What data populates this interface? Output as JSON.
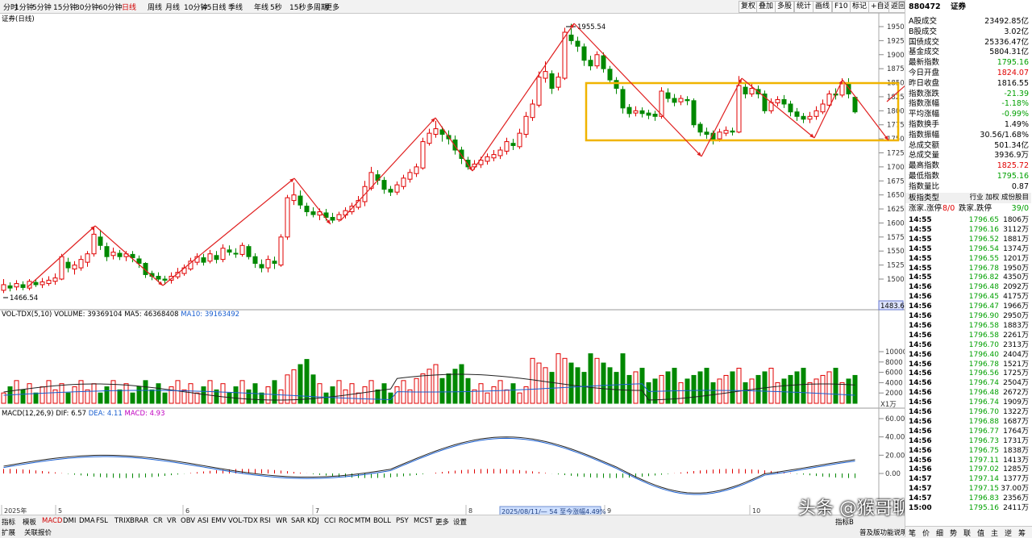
{
  "toolbar": {
    "periods": [
      "分时",
      "1分钟",
      "5分钟",
      "15分钟",
      "30分钟",
      "60分钟",
      "日线",
      "周线",
      "月线",
      "10分钟",
      "45日线",
      "季线",
      "年线",
      "5秒",
      "15秒",
      "多周期",
      "更多"
    ],
    "active_period": "日线",
    "right_buttons": [
      "复权",
      "叠加",
      "多股",
      "统计",
      "画线",
      "F10",
      "标记",
      "+自选",
      "返回"
    ]
  },
  "chart_title": "证券(日线)",
  "price_axis": [
    "1950",
    "1925",
    "1900",
    "1875",
    "1850",
    "1825",
    "1800",
    "1775",
    "1750",
    "1725",
    "1700",
    "1675",
    "1650",
    "1625",
    "1600",
    "1575",
    "1550",
    "1525",
    "1500"
  ],
  "price_high_label": "1955.54",
  "price_low_label": "1466.54",
  "price_current_tag": "1483.6",
  "volume_header": {
    "name": "VOL-TDX(5,10)",
    "volume": "VOLUME: 39369104",
    "ma5": "MA5: 46368408",
    "ma10": "MA10: 39163492"
  },
  "volume_axis": [
    "10000",
    "8000",
    "6000",
    "4000",
    "2000"
  ],
  "volume_unit": "X1万",
  "macd_header": {
    "name": "MACD(12,26,9)",
    "dif": "DIF: 6.57",
    "dea": "DEA: 4.11",
    "macd": "MACD: 4.93"
  },
  "macd_axis": [
    "60.00",
    "40.00",
    "20.00",
    "0.00"
  ],
  "month_labels": [
    "2025年",
    "5",
    "6",
    "7",
    "8",
    "9",
    "10"
  ],
  "range_note": "2025/08/11/— 54 至今涨幅4.49%",
  "bottom_tabs": [
    "指标",
    "模板",
    "MACD",
    "DMI",
    "DMA",
    "FSL",
    "TRIX",
    "BRAR",
    "CR",
    "VR",
    "OBV",
    "ASI",
    "EMV",
    "VOL-TDX",
    "RSI",
    "WR",
    "SAR",
    "KDJ",
    "CCI",
    "ROC",
    "MTM",
    "BOLL",
    "PSY",
    "MCST",
    "更多",
    "设置"
  ],
  "bottom_sub": [
    "扩展",
    "关联报价"
  ],
  "bottom_right": [
    "指标B",
    "普及版功能说明"
  ],
  "watermark": "头条 @猴哥聊缠论",
  "quote": {
    "code": "880472",
    "name": "证券",
    "rows": [
      {
        "label": "A股成交",
        "value": "23492.85亿",
        "color": "#000000"
      },
      {
        "label": "B股成交",
        "value": "3.02亿",
        "color": "#000000"
      },
      {
        "label": "国债成交",
        "value": "25336.47亿",
        "color": "#000000"
      },
      {
        "label": "基金成交",
        "value": "5804.31亿",
        "color": "#000000"
      },
      {
        "label": "最新指数",
        "value": "1795.16",
        "color": "#00a000"
      },
      {
        "label": "今日开盘",
        "value": "1824.07",
        "color": "#e00000"
      },
      {
        "label": "昨日收盘",
        "value": "1816.55",
        "color": "#000000"
      },
      {
        "label": "指数涨跌",
        "value": "-21.39",
        "color": "#00a000"
      },
      {
        "label": "指数涨幅",
        "value": "-1.18%",
        "color": "#00a000"
      },
      {
        "label": "平均涨幅",
        "value": "-0.99%",
        "color": "#00a000"
      },
      {
        "label": "指数换手",
        "value": "1.49%",
        "color": "#000000"
      },
      {
        "label": "指数振幅",
        "value": "30.56/1.68%",
        "color": "#000000"
      },
      {
        "label": "总成交额",
        "value": "501.34亿",
        "color": "#000000"
      },
      {
        "label": "总成交量",
        "value": "3936.9万",
        "color": "#000000"
      },
      {
        "label": "最高指数",
        "value": "1825.72",
        "color": "#e00000"
      },
      {
        "label": "最低指数",
        "value": "1795.16",
        "color": "#00a000"
      },
      {
        "label": "指数量比",
        "value": "0.87",
        "color": "#000000"
      }
    ],
    "type_label": "板指类型",
    "type_value": "行业 加权 成份股目",
    "updown": {
      "l1": "涨家.涨停",
      "v1": "8/0",
      "l2": "跌家.跌停",
      "v2": "39/0"
    }
  },
  "ticks": [
    {
      "t": "14:55",
      "p": "1796.65",
      "v": "1806万"
    },
    {
      "t": "14:55",
      "p": "1796.16",
      "v": "3112万"
    },
    {
      "t": "14:55",
      "p": "1796.52",
      "v": "1881万"
    },
    {
      "t": "14:55",
      "p": "1796.54",
      "v": "1374万"
    },
    {
      "t": "14:55",
      "p": "1796.55",
      "v": "1201万"
    },
    {
      "t": "14:55",
      "p": "1796.78",
      "v": "1950万"
    },
    {
      "t": "14:55",
      "p": "1796.82",
      "v": "4350万"
    },
    {
      "t": "14:56",
      "p": "1796.48",
      "v": "2092万"
    },
    {
      "t": "14:56",
      "p": "1796.45",
      "v": "4175万"
    },
    {
      "t": "14:56",
      "p": "1796.47",
      "v": "1966万"
    },
    {
      "t": "14:56",
      "p": "1796.90",
      "v": "2950万"
    },
    {
      "t": "14:56",
      "p": "1796.58",
      "v": "1883万"
    },
    {
      "t": "14:56",
      "p": "1796.58",
      "v": "2261万"
    },
    {
      "t": "14:56",
      "p": "1796.70",
      "v": "2313万"
    },
    {
      "t": "14:56",
      "p": "1796.40",
      "v": "2404万"
    },
    {
      "t": "14:56",
      "p": "1796.78",
      "v": "1521万"
    },
    {
      "t": "14:56",
      "p": "1796.56",
      "v": "1725万"
    },
    {
      "t": "14:56",
      "p": "1796.74",
      "v": "2504万"
    },
    {
      "t": "14:56",
      "p": "1796.48",
      "v": "2672万"
    },
    {
      "t": "14:56",
      "p": "1796.74",
      "v": "1909万"
    },
    {
      "t": "14:56",
      "p": "1796.70",
      "v": "1322万"
    },
    {
      "t": "14:56",
      "p": "1796.88",
      "v": "1687万"
    },
    {
      "t": "14:56",
      "p": "1796.77",
      "v": "1764万"
    },
    {
      "t": "14:56",
      "p": "1796.73",
      "v": "1731万"
    },
    {
      "t": "14:56",
      "p": "1796.75",
      "v": "1838万"
    },
    {
      "t": "14:56",
      "p": "1797.11",
      "v": "1413万"
    },
    {
      "t": "14:56",
      "p": "1797.02",
      "v": "1285万"
    },
    {
      "t": "14:57",
      "p": "1797.14",
      "v": "1377万"
    },
    {
      "t": "14:57",
      "p": "1797.15",
      "v": "37.00万"
    },
    {
      "t": "14:57",
      "p": "1796.83",
      "v": "2356万"
    },
    {
      "t": "15:00",
      "p": "1795.16",
      "v": "2411万"
    }
  ],
  "panel_tabs": [
    "笔",
    "价",
    "细",
    "势",
    "联",
    "值",
    "主",
    "逆",
    "筹"
  ]
}
